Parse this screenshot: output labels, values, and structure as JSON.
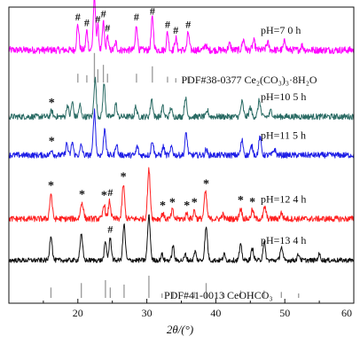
{
  "chart_data": {
    "type": "line",
    "title": "",
    "xlabel": "2θ/(°)",
    "ylabel": "",
    "xlim": [
      10,
      60
    ],
    "xticks": [
      20,
      30,
      40,
      50,
      60
    ],
    "grid": false,
    "legend": "none",
    "series": [
      {
        "name": "pH=7 0 h",
        "color": "#ff00ff",
        "baseline": 0.855,
        "noise": 0.012,
        "label_x": 46.5,
        "peaks": [
          {
            "x": 20.0,
            "h": 0.085,
            "w": 0.28
          },
          {
            "x": 21.3,
            "h": 0.065,
            "w": 0.25
          },
          {
            "x": 22.4,
            "h": 0.175,
            "w": 0.28
          },
          {
            "x": 22.9,
            "h": 0.08,
            "w": 0.22
          },
          {
            "x": 23.7,
            "h": 0.095,
            "w": 0.22
          },
          {
            "x": 24.3,
            "h": 0.05,
            "w": 0.2
          },
          {
            "x": 25.5,
            "h": 0.025,
            "w": 0.25
          },
          {
            "x": 28.5,
            "h": 0.085,
            "w": 0.25
          },
          {
            "x": 30.8,
            "h": 0.11,
            "w": 0.28
          },
          {
            "x": 33.0,
            "h": 0.06,
            "w": 0.25
          },
          {
            "x": 34.2,
            "h": 0.04,
            "w": 0.25
          },
          {
            "x": 36.0,
            "h": 0.06,
            "w": 0.25
          },
          {
            "x": 38.5,
            "h": 0.02,
            "w": 0.25
          },
          {
            "x": 42.0,
            "h": 0.02,
            "w": 0.3
          },
          {
            "x": 44.0,
            "h": 0.035,
            "w": 0.3
          },
          {
            "x": 45.5,
            "h": 0.03,
            "w": 0.3
          },
          {
            "x": 47.5,
            "h": 0.025,
            "w": 0.3
          },
          {
            "x": 50.0,
            "h": 0.03,
            "w": 0.3
          },
          {
            "x": 52.5,
            "h": 0.015,
            "w": 0.3
          }
        ]
      },
      {
        "name": "pH=10 5 h",
        "color": "#2a6b64",
        "baseline": 0.63,
        "noise": 0.01,
        "label_x": 46.5,
        "peaks": [
          {
            "x": 16.2,
            "h": 0.02,
            "w": 0.25
          },
          {
            "x": 18.5,
            "h": 0.04,
            "w": 0.25
          },
          {
            "x": 19.2,
            "h": 0.05,
            "w": 0.25
          },
          {
            "x": 20.3,
            "h": 0.04,
            "w": 0.25
          },
          {
            "x": 22.5,
            "h": 0.13,
            "w": 0.28
          },
          {
            "x": 23.8,
            "h": 0.11,
            "w": 0.28
          },
          {
            "x": 25.5,
            "h": 0.045,
            "w": 0.25
          },
          {
            "x": 28.4,
            "h": 0.035,
            "w": 0.25
          },
          {
            "x": 30.7,
            "h": 0.06,
            "w": 0.28
          },
          {
            "x": 32.3,
            "h": 0.035,
            "w": 0.25
          },
          {
            "x": 33.5,
            "h": 0.03,
            "w": 0.25
          },
          {
            "x": 35.6,
            "h": 0.065,
            "w": 0.28
          },
          {
            "x": 38.8,
            "h": 0.02,
            "w": 0.25
          },
          {
            "x": 43.8,
            "h": 0.05,
            "w": 0.3
          },
          {
            "x": 45.0,
            "h": 0.03,
            "w": 0.3
          },
          {
            "x": 46.3,
            "h": 0.055,
            "w": 0.3
          },
          {
            "x": 48.0,
            "h": 0.02,
            "w": 0.3
          }
        ]
      },
      {
        "name": "pH=11 5 h",
        "color": "#1e1ee6",
        "baseline": 0.5,
        "noise": 0.01,
        "label_x": 46.5,
        "peaks": [
          {
            "x": 16.2,
            "h": 0.02,
            "w": 0.25
          },
          {
            "x": 18.4,
            "h": 0.04,
            "w": 0.25
          },
          {
            "x": 19.2,
            "h": 0.045,
            "w": 0.25
          },
          {
            "x": 20.5,
            "h": 0.035,
            "w": 0.25
          },
          {
            "x": 22.4,
            "h": 0.15,
            "w": 0.28
          },
          {
            "x": 23.9,
            "h": 0.09,
            "w": 0.28
          },
          {
            "x": 25.6,
            "h": 0.04,
            "w": 0.25
          },
          {
            "x": 28.6,
            "h": 0.03,
            "w": 0.25
          },
          {
            "x": 30.8,
            "h": 0.05,
            "w": 0.28
          },
          {
            "x": 32.4,
            "h": 0.03,
            "w": 0.25
          },
          {
            "x": 33.6,
            "h": 0.03,
            "w": 0.25
          },
          {
            "x": 35.7,
            "h": 0.075,
            "w": 0.28
          },
          {
            "x": 38.6,
            "h": 0.02,
            "w": 0.25
          },
          {
            "x": 43.8,
            "h": 0.05,
            "w": 0.3
          },
          {
            "x": 45.2,
            "h": 0.03,
            "w": 0.3
          },
          {
            "x": 46.4,
            "h": 0.06,
            "w": 0.3
          },
          {
            "x": 48.5,
            "h": 0.02,
            "w": 0.3
          }
        ]
      },
      {
        "name": "pH=12 4 h",
        "color": "#ff2020",
        "baseline": 0.285,
        "noise": 0.01,
        "label_x": 46.5,
        "peaks": [
          {
            "x": 16.1,
            "h": 0.085,
            "w": 0.3
          },
          {
            "x": 20.6,
            "h": 0.055,
            "w": 0.35
          },
          {
            "x": 23.8,
            "h": 0.05,
            "w": 0.28
          },
          {
            "x": 24.6,
            "h": 0.06,
            "w": 0.28
          },
          {
            "x": 26.6,
            "h": 0.115,
            "w": 0.3
          },
          {
            "x": 30.3,
            "h": 0.165,
            "w": 0.32
          },
          {
            "x": 32.3,
            "h": 0.02,
            "w": 0.25
          },
          {
            "x": 33.7,
            "h": 0.03,
            "w": 0.25
          },
          {
            "x": 35.8,
            "h": 0.02,
            "w": 0.25
          },
          {
            "x": 36.9,
            "h": 0.03,
            "w": 0.25
          },
          {
            "x": 38.5,
            "h": 0.09,
            "w": 0.32
          },
          {
            "x": 41.0,
            "h": 0.015,
            "w": 0.25
          },
          {
            "x": 43.6,
            "h": 0.035,
            "w": 0.3
          },
          {
            "x": 45.3,
            "h": 0.03,
            "w": 0.3
          },
          {
            "x": 47.1,
            "h": 0.04,
            "w": 0.3
          },
          {
            "x": 49.5,
            "h": 0.02,
            "w": 0.3
          }
        ]
      },
      {
        "name": "pH=13 4 h",
        "color": "#111111",
        "baseline": 0.145,
        "noise": 0.008,
        "label_x": 46.5,
        "peaks": [
          {
            "x": 16.1,
            "h": 0.085,
            "w": 0.3
          },
          {
            "x": 20.5,
            "h": 0.085,
            "w": 0.32
          },
          {
            "x": 24.0,
            "h": 0.06,
            "w": 0.28
          },
          {
            "x": 24.7,
            "h": 0.075,
            "w": 0.28
          },
          {
            "x": 26.7,
            "h": 0.12,
            "w": 0.3
          },
          {
            "x": 30.3,
            "h": 0.15,
            "w": 0.32
          },
          {
            "x": 32.2,
            "h": 0.02,
            "w": 0.25
          },
          {
            "x": 33.8,
            "h": 0.05,
            "w": 0.25
          },
          {
            "x": 35.6,
            "h": 0.02,
            "w": 0.25
          },
          {
            "x": 37.0,
            "h": 0.03,
            "w": 0.25
          },
          {
            "x": 38.6,
            "h": 0.11,
            "w": 0.32
          },
          {
            "x": 41.2,
            "h": 0.02,
            "w": 0.25
          },
          {
            "x": 43.6,
            "h": 0.05,
            "w": 0.3
          },
          {
            "x": 45.3,
            "h": 0.04,
            "w": 0.3
          },
          {
            "x": 47.0,
            "h": 0.06,
            "w": 0.3
          },
          {
            "x": 49.5,
            "h": 0.045,
            "w": 0.3
          },
          {
            "x": 52.0,
            "h": 0.02,
            "w": 0.3
          },
          {
            "x": 55.0,
            "h": 0.02,
            "w": 0.3
          }
        ]
      }
    ],
    "references": [
      {
        "label": "PDF#38-0377 Ce₂(CO₃)₃·8H₂O",
        "color": "#999999",
        "baseline": 0.745,
        "label_x": 35.0,
        "lines": [
          {
            "x": 20.0,
            "h": 0.03
          },
          {
            "x": 21.3,
            "h": 0.025
          },
          {
            "x": 22.4,
            "h": 0.1
          },
          {
            "x": 22.9,
            "h": 0.045
          },
          {
            "x": 23.7,
            "h": 0.06
          },
          {
            "x": 24.3,
            "h": 0.03
          },
          {
            "x": 28.5,
            "h": 0.03
          },
          {
            "x": 30.8,
            "h": 0.055
          },
          {
            "x": 33.0,
            "h": 0.02
          },
          {
            "x": 34.2,
            "h": 0.015
          },
          {
            "x": 36.0,
            "h": 0.02
          }
        ]
      },
      {
        "label": "PDF#41-0013 CeOHCO₃",
        "color": "#999999",
        "baseline": 0.018,
        "label_x": 32.5,
        "lines": [
          {
            "x": 16.1,
            "h": 0.035
          },
          {
            "x": 20.5,
            "h": 0.05
          },
          {
            "x": 24.0,
            "h": 0.06
          },
          {
            "x": 24.7,
            "h": 0.035
          },
          {
            "x": 26.7,
            "h": 0.045
          },
          {
            "x": 30.3,
            "h": 0.075
          },
          {
            "x": 32.2,
            "h": 0.015
          },
          {
            "x": 33.8,
            "h": 0.02
          },
          {
            "x": 36.9,
            "h": 0.02
          },
          {
            "x": 38.6,
            "h": 0.05
          },
          {
            "x": 41.2,
            "h": 0.015
          },
          {
            "x": 43.6,
            "h": 0.025
          },
          {
            "x": 45.3,
            "h": 0.02
          },
          {
            "x": 47.0,
            "h": 0.025
          },
          {
            "x": 49.5,
            "h": 0.02
          },
          {
            "x": 52.0,
            "h": 0.015
          }
        ]
      }
    ],
    "markers": [
      {
        "symbol": "#",
        "x": 20.0,
        "y": 0.955
      },
      {
        "symbol": "#",
        "x": 21.3,
        "y": 0.935
      },
      {
        "symbol": "#",
        "x": 22.4,
        "y": 1.04
      },
      {
        "symbol": "#",
        "x": 22.9,
        "y": 0.948
      },
      {
        "symbol": "#",
        "x": 23.7,
        "y": 0.965
      },
      {
        "symbol": "#",
        "x": 24.3,
        "y": 0.918
      },
      {
        "symbol": "#",
        "x": 28.5,
        "y": 0.955
      },
      {
        "symbol": "#",
        "x": 30.8,
        "y": 0.975
      },
      {
        "symbol": "#",
        "x": 33.0,
        "y": 0.93
      },
      {
        "symbol": "#",
        "x": 34.2,
        "y": 0.91
      },
      {
        "symbol": "#",
        "x": 36.0,
        "y": 0.93
      },
      {
        "symbol": "*",
        "x": 16.2,
        "y": 0.665
      },
      {
        "symbol": "*",
        "x": 16.2,
        "y": 0.535
      },
      {
        "symbol": "*",
        "x": 16.1,
        "y": 0.385
      },
      {
        "symbol": "*",
        "x": 20.6,
        "y": 0.355
      },
      {
        "symbol": "*",
        "x": 23.8,
        "y": 0.352
      },
      {
        "symbol": "#",
        "x": 24.7,
        "y": 0.362
      },
      {
        "symbol": "*",
        "x": 26.6,
        "y": 0.415
      },
      {
        "symbol": "*",
        "x": 32.3,
        "y": 0.318
      },
      {
        "symbol": "*",
        "x": 33.7,
        "y": 0.328
      },
      {
        "symbol": "*",
        "x": 35.8,
        "y": 0.318
      },
      {
        "symbol": "*",
        "x": 36.9,
        "y": 0.328
      },
      {
        "symbol": "*",
        "x": 38.6,
        "y": 0.39
      },
      {
        "symbol": "*",
        "x": 43.6,
        "y": 0.335
      },
      {
        "symbol": "*",
        "x": 45.3,
        "y": 0.33
      },
      {
        "symbol": "#",
        "x": 24.7,
        "y": 0.238
      }
    ]
  }
}
